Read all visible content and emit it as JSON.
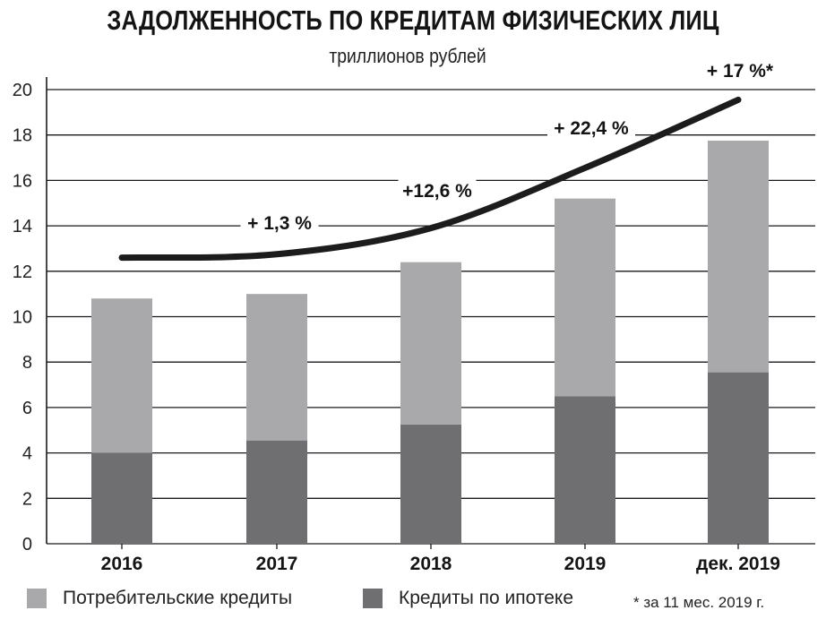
{
  "chart_data": {
    "type": "bar",
    "stacked": true,
    "title": "ЗАДОЛЖЕННОСТЬ ПО КРЕДИТАМ ФИЗИЧЕСКИХ ЛИЦ",
    "subtitle": "триллионов рублей",
    "categories": [
      "2016",
      "2017",
      "2018",
      "2019",
      "дек. 2019"
    ],
    "series": [
      {
        "name": "Кредиты по ипотеке",
        "values": [
          4.0,
          4.55,
          5.25,
          6.5,
          7.55
        ],
        "color": "#6f6f72"
      },
      {
        "name": "Потребительские кредиты",
        "values": [
          6.8,
          6.45,
          7.15,
          8.7,
          10.2
        ],
        "color": "#a9a9ac"
      }
    ],
    "trend_line": {
      "values": [
        12.6,
        12.75,
        13.9,
        16.55,
        19.55
      ],
      "color": "#1c1c1c"
    },
    "growth_labels": [
      "+ 1,3 %",
      "+12,6 %",
      "+ 22,4 %",
      "+ 17 %*"
    ],
    "ylim": [
      0,
      20
    ],
    "yticks": [
      "0",
      "2",
      "4",
      "6",
      "8",
      "10",
      "12",
      "14",
      "16",
      "18",
      "20"
    ],
    "grid": true,
    "legend": "bottom",
    "footnote": "*  за 11 мес. 2019 г."
  }
}
